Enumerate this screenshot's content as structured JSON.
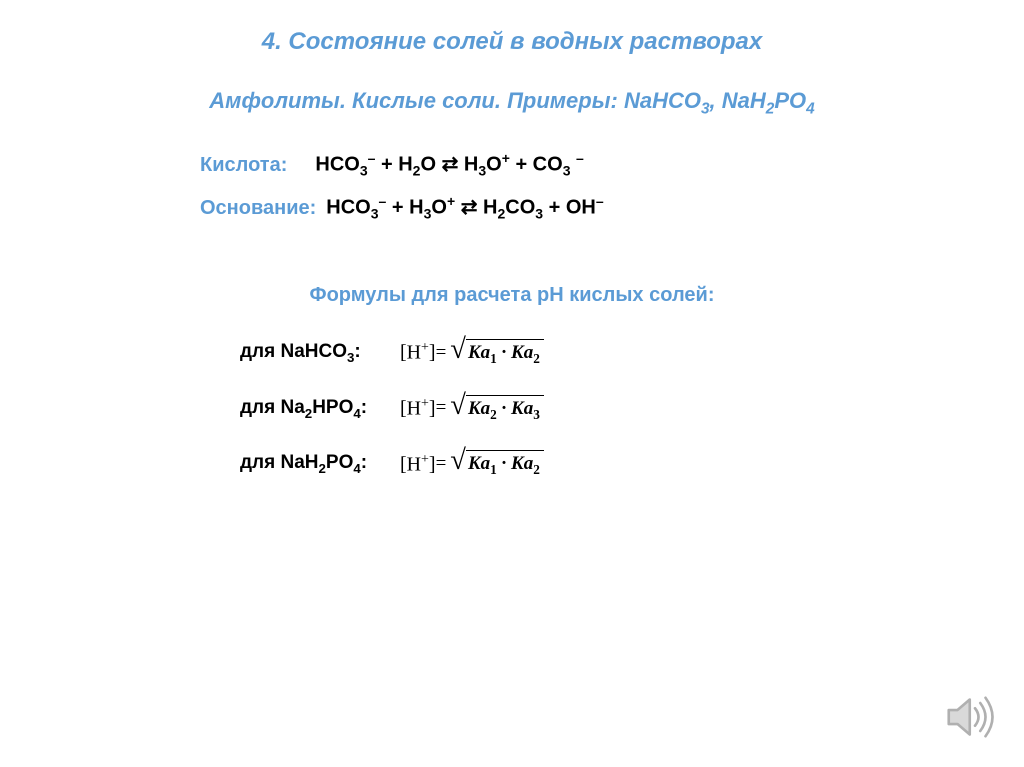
{
  "title": {
    "text": "4. Состояние солей в водных растворах",
    "color": "#5b9bd5",
    "fontsize": 24
  },
  "subtitle": {
    "prefix": "Амфолиты. Кислые соли. Примеры: NaHCO",
    "sub1": "3",
    "mid": ", NaH",
    "sub2": "2",
    "mid2": "PO",
    "sub3": "4",
    "color": "#5b9bd5",
    "fontsize": 22
  },
  "reactions": {
    "fontsize": 20,
    "label_color": "#5b9bd5",
    "body_color": "#000000",
    "acid": {
      "label": "Кислота:",
      "body_parts": [
        "HCO",
        "3",
        "–",
        " + H",
        "2",
        "O  ⇄  H",
        "3",
        "O",
        "+",
        " + CO",
        "3",
        " ",
        "–"
      ]
    },
    "base": {
      "label": "Основание:",
      "body_parts": [
        "HCO",
        "3",
        "–",
        " + H",
        "3",
        "O",
        "+",
        "  ⇄  H",
        "2",
        "CO",
        "3",
        "  + OH",
        "–"
      ]
    }
  },
  "section2": {
    "text": "Формулы для расчета рН кислых солей:",
    "color": "#5b9bd5",
    "fontsize": 20
  },
  "formulas": {
    "fontsize": 19,
    "items": [
      {
        "label_pre": "для NaHCO",
        "label_sub": "3",
        "label_post": ":",
        "ka_a": "1",
        "ka_b": "2"
      },
      {
        "label_pre": "для Na",
        "label_sub": "2",
        "label_mid": "HPO",
        "label_sub2": "4",
        "label_post": ":",
        "ka_a": "2",
        "ka_b": "3"
      },
      {
        "label_pre": "для NaH",
        "label_sub": "2",
        "label_mid": "PO",
        "label_sub2": "4",
        "label_post": ":",
        "ka_a": "1",
        "ka_b": "2"
      }
    ],
    "hplus": "H",
    "equals": " = "
  },
  "audio_icon": {
    "color": "#b0b0b0"
  }
}
